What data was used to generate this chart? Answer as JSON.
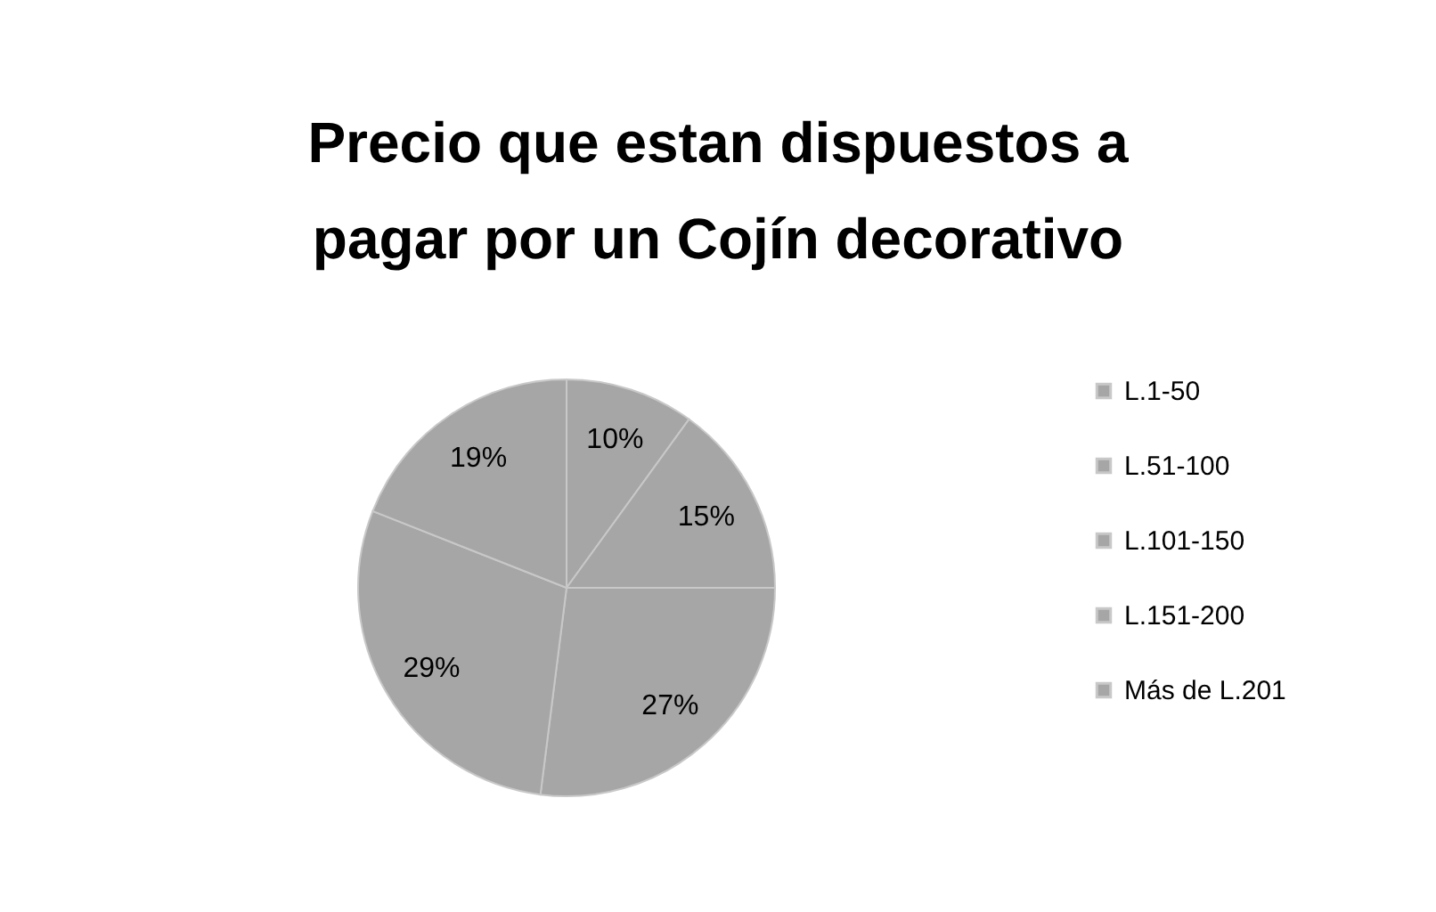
{
  "chart_data": {
    "type": "pie",
    "title": "Precio que estan dispuestos a pagar por un Cojín decorativo",
    "categories": [
      "L.1-50",
      "L.51-100",
      "L.101-150",
      "L.151-200",
      "Más de L.201"
    ],
    "values": [
      10,
      15,
      27,
      29,
      19
    ],
    "colors": [
      "#a6a6a6",
      "#a6a6a6",
      "#a6a6a6",
      "#a6a6a6",
      "#a6a6a6"
    ],
    "value_labels": [
      "10%",
      "15%",
      "27%",
      "29%",
      "19%"
    ],
    "legend": "right"
  }
}
